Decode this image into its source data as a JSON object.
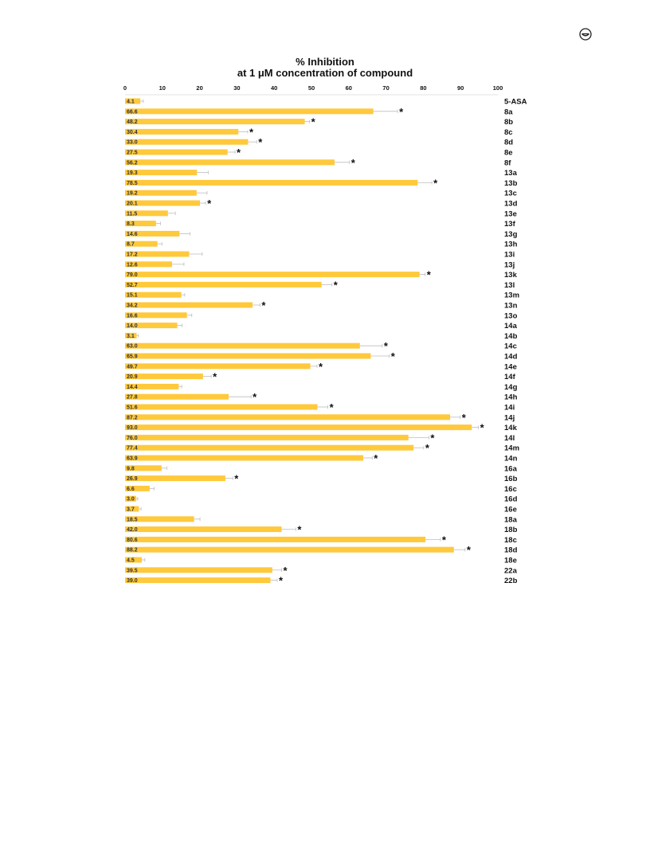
{
  "corner_icon": "open-access-icon",
  "chart_data": {
    "type": "bar",
    "orientation": "horizontal",
    "title_lines": [
      "% Inhibition",
      "at 1 μM concentration of compound"
    ],
    "xlim": [
      0,
      100
    ],
    "xticks": [
      "0",
      "10",
      "20",
      "30",
      "40",
      "50",
      "60",
      "70",
      "80",
      "90",
      "100"
    ],
    "bar_color": "#FFC93C",
    "categories": [
      "5-ASA",
      "8a",
      "8b",
      "8c",
      "8d",
      "8e",
      "8f",
      "13a",
      "13b",
      "13c",
      "13d",
      "13e",
      "13f",
      "13g",
      "13h",
      "13i",
      "13j",
      "13k",
      "13l",
      "13m",
      "13n",
      "13o",
      "14a",
      "14b",
      "14c",
      "14d",
      "14e",
      "14f",
      "14g",
      "14h",
      "14i",
      "14j",
      "14k",
      "14l",
      "14m",
      "14n",
      "16a",
      "16b",
      "16c",
      "16d",
      "16e",
      "18a",
      "18b",
      "18c",
      "18d",
      "18e",
      "22a",
      "22b"
    ],
    "values": [
      4.1,
      66.6,
      48.2,
      30.4,
      33.0,
      27.5,
      56.2,
      19.3,
      78.5,
      19.2,
      20.1,
      11.5,
      8.3,
      14.6,
      8.7,
      17.2,
      12.6,
      79.0,
      52.7,
      15.1,
      34.2,
      16.6,
      14.0,
      3.1,
      63.0,
      65.9,
      49.7,
      20.9,
      14.4,
      27.8,
      51.6,
      87.2,
      93.0,
      76.0,
      77.4,
      63.9,
      9.8,
      26.9,
      6.6,
      3.0,
      3.7,
      18.5,
      42.0,
      80.6,
      88.2,
      4.5,
      39.5,
      39.0
    ],
    "value_labels": [
      "4.1",
      "66.6",
      "48.2",
      "30.4",
      "33.0",
      "27.5",
      "56.2",
      "19.3",
      "78.5",
      "19.2",
      "20.1",
      "11.5",
      "8.3",
      "14.6",
      "8.7",
      "17.2",
      "12.6",
      "79.0",
      "52.7",
      "15.1",
      "34.2",
      "16.6",
      "14.0",
      "3.1",
      "63.0",
      "65.9",
      "49.7",
      "20.9",
      "14.4",
      "27.8",
      "51.6",
      "87.2",
      "93.0",
      "76.0",
      "77.4",
      "63.9",
      "9.8",
      "26.9",
      "6.6",
      "3.0",
      "3.7",
      "18.5",
      "42.0",
      "80.6",
      "88.2",
      "4.5",
      "39.5",
      "39.0"
    ],
    "errors": [
      0.8,
      6.5,
      1.3,
      2.5,
      2.3,
      2.0,
      4.0,
      3.0,
      3.8,
      2.8,
      1.5,
      2.0,
      1.2,
      2.8,
      1.2,
      3.5,
      3.2,
      1.5,
      2.8,
      0.9,
      2.0,
      1.3,
      1.3,
      0.5,
      6.0,
      5.0,
      1.8,
      2.2,
      0.8,
      6.0,
      2.8,
      2.7,
      1.8,
      5.5,
      2.7,
      2.4,
      1.4,
      2.0,
      1.2,
      0.4,
      0.6,
      1.6,
      3.8,
      4.0,
      3.0,
      0.8,
      2.5,
      1.8
    ],
    "significant": [
      false,
      true,
      true,
      true,
      true,
      true,
      true,
      false,
      true,
      false,
      true,
      false,
      false,
      false,
      false,
      false,
      false,
      true,
      true,
      false,
      true,
      false,
      false,
      false,
      true,
      true,
      true,
      true,
      false,
      true,
      true,
      true,
      true,
      true,
      true,
      true,
      false,
      true,
      false,
      false,
      false,
      false,
      true,
      true,
      true,
      false,
      true,
      true
    ],
    "significance_marker": "*"
  }
}
